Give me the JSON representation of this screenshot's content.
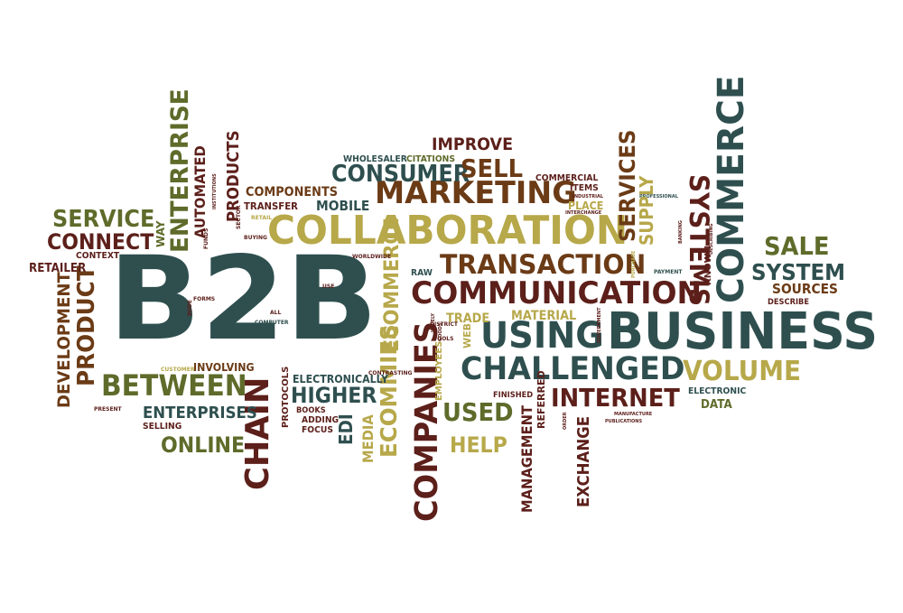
{
  "palette": {
    "teal": "#2f4f4f",
    "maroon": "#5c1f1a",
    "olive": "#5e6b2a",
    "gold": "#b7a84a",
    "brown": "#6b3b16"
  },
  "words": [
    {
      "text": "B2B",
      "color": "#2f4f4f"
    },
    {
      "text": "BUSINESS",
      "color": "#2f4f4f"
    },
    {
      "text": "COLLABORATION",
      "color": "#b7a84a"
    },
    {
      "text": "COMMUNICATION",
      "color": "#5c1f1a"
    },
    {
      "text": "TRANSACTION",
      "color": "#6b3b16"
    },
    {
      "text": "MARKETING",
      "color": "#6b3b16"
    },
    {
      "text": "CHALLENGED",
      "color": "#2f4f4f"
    },
    {
      "text": "USING",
      "color": "#2f4f4f"
    },
    {
      "text": "VOLUME",
      "color": "#b7a84a"
    },
    {
      "text": "BETWEEN",
      "color": "#5e6b2a"
    },
    {
      "text": "COMMERCE",
      "color": "#2f4f4f"
    },
    {
      "text": "COMPANIES",
      "color": "#5c1f1a"
    },
    {
      "text": "CHAIN",
      "color": "#5c1f1a"
    },
    {
      "text": "ECOMMIES",
      "color": "#b7a84a"
    },
    {
      "text": "ECOMMERCE",
      "color": "#b7a84a"
    },
    {
      "text": "ENTERPRISE",
      "color": "#5e6b2a"
    },
    {
      "text": "SYSTEMS",
      "color": "#5c1f1a"
    },
    {
      "text": "SERVICES",
      "color": "#6b3b16"
    },
    {
      "text": "PRODUCT",
      "color": "#6b3b16"
    },
    {
      "text": "DEVELOPMENT",
      "color": "#6b3b16"
    },
    {
      "text": "INTERNET",
      "color": "#5c1f1a"
    },
    {
      "text": "HIGHER",
      "color": "#2f4f4f"
    },
    {
      "text": "USED",
      "color": "#5e6b2a"
    },
    {
      "text": "HELP",
      "color": "#b7a84a"
    },
    {
      "text": "ONLINE",
      "color": "#5e6b2a"
    },
    {
      "text": "ENTERPRISES",
      "color": "#2f4f4f"
    },
    {
      "text": "SERVICE",
      "color": "#5e6b2a"
    },
    {
      "text": "CONNECT",
      "color": "#5c1f1a"
    },
    {
      "text": "SALE",
      "color": "#5e6b2a"
    },
    {
      "text": "SYSTEM",
      "color": "#2f4f4f"
    },
    {
      "text": "SOURCES",
      "color": "#6b3b16"
    },
    {
      "text": "CONSUMER",
      "color": "#2f4f4f"
    },
    {
      "text": "SELL",
      "color": "#6b3b16"
    },
    {
      "text": "IMPROVE",
      "color": "#5c1f1a"
    },
    {
      "text": "PRODUCTS",
      "color": "#5c1f1a"
    },
    {
      "text": "AUTOMATED",
      "color": "#5c1f1a"
    },
    {
      "text": "COMPONENTS",
      "color": "#6b3b16"
    },
    {
      "text": "MOBILE",
      "color": "#2f4f4f"
    },
    {
      "text": "TRANSFER",
      "color": "#5c1f1a"
    },
    {
      "text": "RETAILER",
      "color": "#5c1f1a"
    },
    {
      "text": "SUPPLY",
      "color": "#b7a84a"
    },
    {
      "text": "MANAGEMENT",
      "color": "#5c1f1a"
    },
    {
      "text": "EXCHANGE",
      "color": "#5c1f1a"
    },
    {
      "text": "MEDIA",
      "color": "#b7a84a"
    },
    {
      "text": "EDI",
      "color": "#2f4f4f"
    },
    {
      "text": "TRADE",
      "color": "#b7a84a"
    },
    {
      "text": "MATERIAL",
      "color": "#b7a84a"
    },
    {
      "text": "ELECTRONICALLY",
      "color": "#2f4f4f"
    },
    {
      "text": "INVOLVING",
      "color": "#6b3b16"
    },
    {
      "text": "PLACE",
      "color": "#b7a84a"
    },
    {
      "text": "ITEMS",
      "color": "#5c1f1a"
    },
    {
      "text": "COMMERCIAL",
      "color": "#5c1f1a"
    },
    {
      "text": "WHOLESALER",
      "color": "#2f4f4f"
    },
    {
      "text": "CITATIONS",
      "color": "#5e6b2a"
    },
    {
      "text": "WAY",
      "color": "#5e6b2a"
    },
    {
      "text": "CONTEXT",
      "color": "#5c1f1a"
    },
    {
      "text": "DATA",
      "color": "#5e6b2a"
    },
    {
      "text": "ELECTRONIC",
      "color": "#2f4f4f"
    },
    {
      "text": "DESCRIBE",
      "color": "#5c1f1a"
    },
    {
      "text": "KNOWN",
      "color": "#5c1f1a"
    },
    {
      "text": "RAW",
      "color": "#2f4f4f"
    },
    {
      "text": "FINISHED",
      "color": "#5c1f1a"
    },
    {
      "text": "REFERRED",
      "color": "#5c1f1a"
    },
    {
      "text": "WEB",
      "color": "#b7a84a"
    },
    {
      "text": "EMPLOYEES",
      "color": "#b7a84a"
    },
    {
      "text": "PROTOCOLS",
      "color": "#5c1f1a"
    },
    {
      "text": "ADDING",
      "color": "#5c1f1a"
    },
    {
      "text": "BOOKS",
      "color": "#5c1f1a"
    },
    {
      "text": "FOCUS",
      "color": "#5c1f1a"
    },
    {
      "text": "SELLING",
      "color": "#5c1f1a"
    },
    {
      "text": "PRESENT",
      "color": "#5c1f1a"
    },
    {
      "text": "CUSTOMER",
      "color": "#b7a84a"
    },
    {
      "text": "COMPUTER",
      "color": "#2f4f4f"
    },
    {
      "text": "FORMS",
      "color": "#5c1f1a"
    },
    {
      "text": "WORLDWIDE",
      "color": "#5c1f1a"
    },
    {
      "text": "USE",
      "color": "#5c1f1a"
    },
    {
      "text": "ALL",
      "color": "#5c1f1a"
    },
    {
      "text": "WIDE",
      "color": "#5c1f1a"
    },
    {
      "text": "BUYING",
      "color": "#5c1f1a"
    },
    {
      "text": "RETAIL",
      "color": "#b7a84a"
    },
    {
      "text": "SECTOR",
      "color": "#5c1f1a"
    },
    {
      "text": "INSTITUTIONS",
      "color": "#5c1f1a"
    },
    {
      "text": "FUNDS",
      "color": "#5c1f1a"
    },
    {
      "text": "DISTRICT",
      "color": "#5c1f1a"
    },
    {
      "text": "TOOLS",
      "color": "#5c1f1a"
    },
    {
      "text": "CONTRASTING",
      "color": "#5c1f1a"
    },
    {
      "text": "WIDELY",
      "color": "#5c1f1a"
    },
    {
      "text": "GOODS",
      "color": "#5c1f1a"
    },
    {
      "text": "INDUSTRIAL",
      "color": "#5c1f1a"
    },
    {
      "text": "INTERCHANGE",
      "color": "#5c1f1a"
    },
    {
      "text": "PROFESSIONAL",
      "color": "#2f4f4f"
    },
    {
      "text": "BANKING",
      "color": "#5c1f1a"
    },
    {
      "text": "DESCRIBING",
      "color": "#5c1f1a"
    },
    {
      "text": "PURCHASE",
      "color": "#b7a84a"
    },
    {
      "text": "PAYMENT",
      "color": "#2f4f4f"
    },
    {
      "text": "GOVERNMENT",
      "color": "#5c1f1a"
    },
    {
      "text": "ORDER",
      "color": "#5c1f1a"
    },
    {
      "text": "MANUFACTURE",
      "color": "#5c1f1a"
    },
    {
      "text": "PUBLICATIONS",
      "color": "#5c1f1a"
    }
  ]
}
